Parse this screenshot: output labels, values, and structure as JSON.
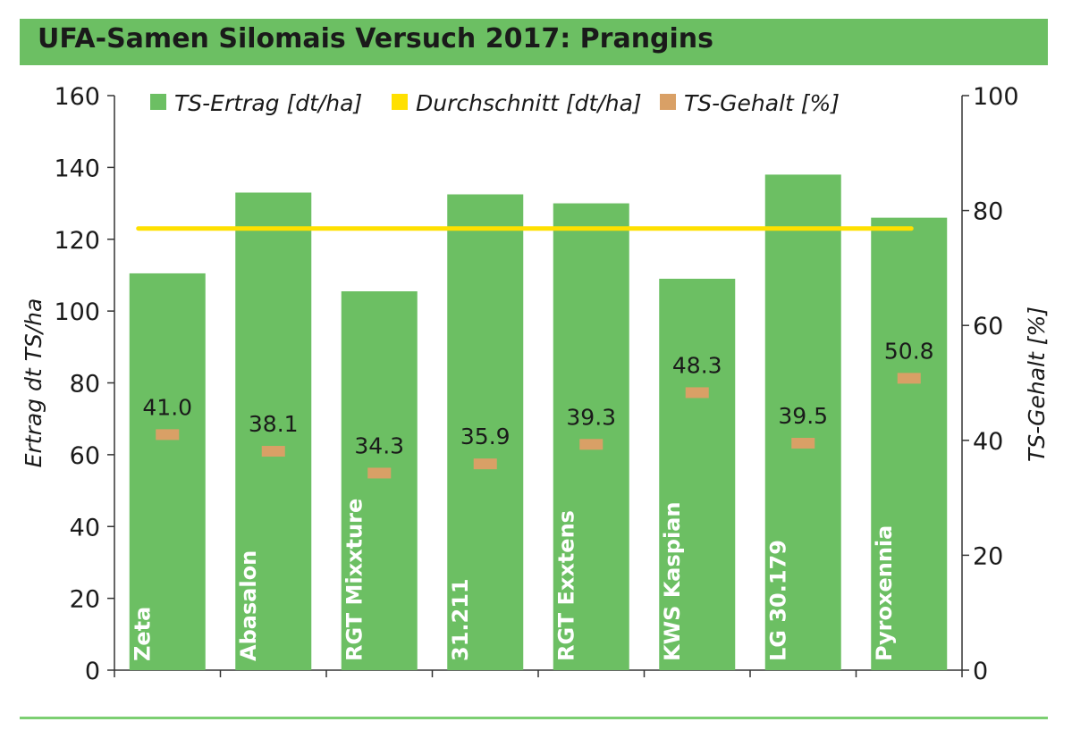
{
  "title": "UFA-Samen Silomais Versuch 2017: Prangins",
  "colors": {
    "title_bar": "#6cbf63",
    "bar": "#6cbf63",
    "average_line": "#ffe000",
    "marker": "#d9a066",
    "axis": "#333333",
    "bottom_rule": "#7ccf72"
  },
  "chart_data": {
    "type": "bar",
    "categories": [
      "Zeta",
      "Abasalon",
      "RGT Mixxture",
      "31.211",
      "RGT Exxtens",
      "KWS Kaspian",
      "LG 30.179",
      "Pyroxennia"
    ],
    "series": [
      {
        "name": "TS-Ertrag [dt/ha]",
        "type": "bar",
        "axis": "left",
        "values": [
          110.5,
          133,
          105.5,
          132.5,
          130,
          109,
          138,
          126
        ]
      },
      {
        "name": "Durchschnitt [dt/ha]",
        "type": "line",
        "axis": "left",
        "values": [
          123,
          123,
          123,
          123,
          123,
          123,
          123,
          123
        ]
      },
      {
        "name": "TS-Gehalt [%]",
        "type": "marker",
        "axis": "right",
        "values": [
          41.0,
          38.1,
          34.3,
          35.9,
          39.3,
          48.3,
          39.5,
          50.8
        ],
        "labels": [
          "41.0",
          "38.1",
          "34.3",
          "35.9",
          "39.3",
          "48.3",
          "39.5",
          "50.8"
        ]
      }
    ],
    "ylabel": "Ertrag dt TS/ha",
    "y2label": "TS-Gehalt  [%]",
    "ylim": [
      0,
      160
    ],
    "y2lim": [
      0,
      100
    ],
    "yticks": [
      "0",
      "20",
      "40",
      "60",
      "80",
      "100",
      "120",
      "140",
      "160"
    ],
    "y2ticks": [
      "0",
      "20",
      "40",
      "60",
      "80",
      "100"
    ],
    "legend": [
      {
        "label": "TS-Ertrag [dt/ha]",
        "color": "#6cbf63"
      },
      {
        "label": "Durchschnitt [dt/ha]",
        "color": "#ffe000"
      },
      {
        "label": "TS-Gehalt [%]",
        "color": "#d9a066"
      }
    ],
    "legend_position": "top"
  }
}
